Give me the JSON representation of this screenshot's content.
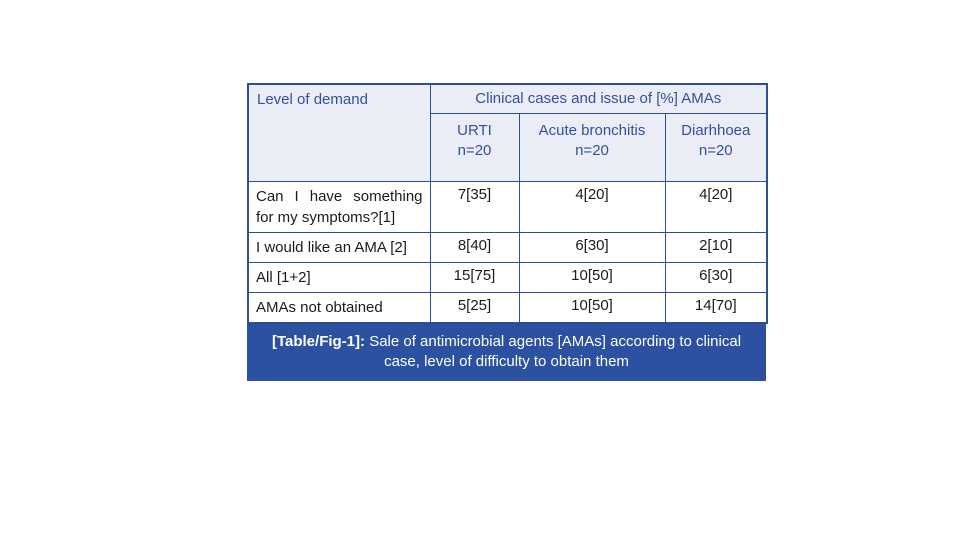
{
  "table": {
    "corner_header": "Level of demand",
    "group_header": "Clinical cases and issue of [%] AMAs",
    "columns": [
      {
        "name": "URTI",
        "n": "n=20"
      },
      {
        "name": "Acute bronchitis",
        "n": "n=20"
      },
      {
        "name": "Diarhhoea",
        "n": "n=20"
      }
    ],
    "rows": [
      {
        "label": "Can I have something for my symptoms?[1]",
        "values": [
          "7[35]",
          "4[20]",
          "4[20]"
        ]
      },
      {
        "label": "I would like an AMA [2]",
        "values": [
          "8[40]",
          "6[30]",
          "2[10]"
        ]
      },
      {
        "label": "All [1+2]",
        "values": [
          "15[75]",
          "10[50]",
          "6[30]"
        ]
      },
      {
        "label": "AMAs not obtained",
        "values": [
          "5[25]",
          "10[50]",
          "14[70]"
        ]
      }
    ]
  },
  "caption": {
    "prefix": "[Table/Fig-1]:",
    "line1": "Sale of antimicrobial agents [AMAs] according to clinical",
    "line2": "case, level of difficulty to obtain them"
  },
  "colors": {
    "border": "#2e4f96",
    "header_bg": "#eaedf6",
    "header_text": "#34519e",
    "caption_bg": "#2b51a0",
    "body_text": "#1b1b1b"
  }
}
